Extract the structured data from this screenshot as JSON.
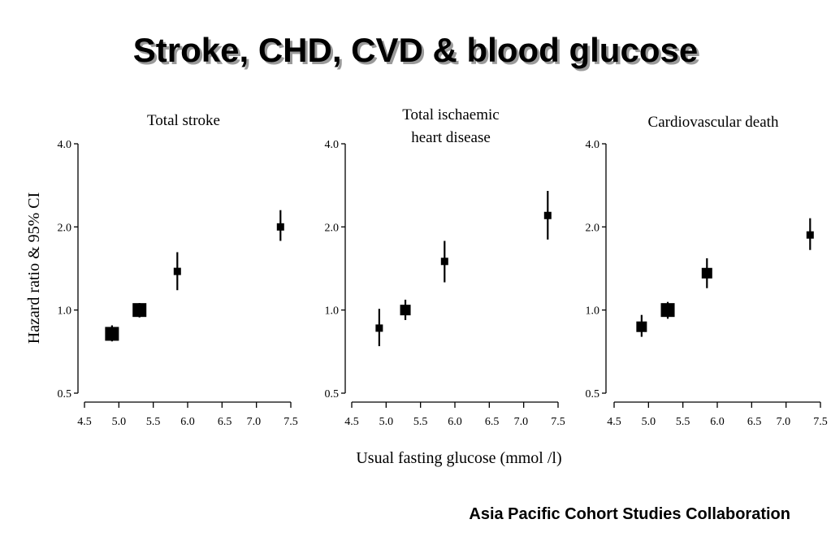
{
  "slide": {
    "title": "Stroke, CHD, CVD & blood glucose",
    "credit": "Asia Pacific Cohort Studies Collaboration"
  },
  "chart_data": {
    "shared_ylabel": "Hazard ratio & 95% CI",
    "shared_xlabel": "Usual fasting glucose (mmol /l)",
    "panels": [
      {
        "type": "scatter",
        "title_lines": [
          "Total stroke"
        ],
        "y_scale": "log",
        "ylim": [
          0.5,
          4.0
        ],
        "y_ticks": [
          0.5,
          1.0,
          2.0,
          4.0
        ],
        "y_tick_labels": [
          "0.5",
          "1.0",
          "2.0",
          "4.0"
        ],
        "xlim": [
          4.5,
          7.5
        ],
        "x_ticks": [
          4.5,
          5.0,
          5.5,
          6.0,
          6.5,
          7.0,
          7.5
        ],
        "x_tick_labels": [
          "4.5",
          "5.0",
          "5.5",
          "6.0",
          "6.5",
          "7.0",
          "7.5"
        ],
        "points": [
          {
            "x": 4.9,
            "y": 0.82,
            "lo": 0.77,
            "hi": 0.88,
            "weight": 3
          },
          {
            "x": 5.3,
            "y": 1.0,
            "lo": 0.94,
            "hi": 1.06,
            "weight": 3
          },
          {
            "x": 5.85,
            "y": 1.38,
            "lo": 1.18,
            "hi": 1.62,
            "weight": 1
          },
          {
            "x": 7.35,
            "y": 2.0,
            "lo": 1.78,
            "hi": 2.3,
            "weight": 1
          }
        ]
      },
      {
        "type": "scatter",
        "title_lines": [
          "Total ischaemic",
          "heart disease"
        ],
        "y_scale": "log",
        "ylim": [
          0.5,
          4.0
        ],
        "y_ticks": [
          0.5,
          1.0,
          2.0,
          4.0
        ],
        "y_tick_labels": [
          "0.5",
          "1.0",
          "2.0",
          "4.0"
        ],
        "xlim": [
          4.5,
          7.5
        ],
        "x_ticks": [
          4.5,
          5.0,
          5.5,
          6.0,
          6.5,
          7.0,
          7.5
        ],
        "x_tick_labels": [
          "4.5",
          "5.0",
          "5.5",
          "6.0",
          "6.5",
          "7.0",
          "7.5"
        ],
        "points": [
          {
            "x": 4.9,
            "y": 0.86,
            "lo": 0.74,
            "hi": 1.01,
            "weight": 1
          },
          {
            "x": 5.28,
            "y": 1.0,
            "lo": 0.92,
            "hi": 1.09,
            "weight": 2
          },
          {
            "x": 5.85,
            "y": 1.5,
            "lo": 1.26,
            "hi": 1.78,
            "weight": 1
          },
          {
            "x": 7.35,
            "y": 2.2,
            "lo": 1.8,
            "hi": 2.7,
            "weight": 1
          }
        ]
      },
      {
        "type": "scatter",
        "title_lines": [
          "Cardiovascular death"
        ],
        "y_scale": "log",
        "ylim": [
          0.5,
          4.0
        ],
        "y_ticks": [
          0.5,
          1.0,
          2.0,
          4.0
        ],
        "y_tick_labels": [
          "0.5",
          "1.0",
          "2.0",
          "4.0"
        ],
        "xlim": [
          4.5,
          7.5
        ],
        "x_ticks": [
          4.5,
          5.0,
          5.5,
          6.0,
          6.5,
          7.0,
          7.5
        ],
        "x_tick_labels": [
          "4.5",
          "5.0",
          "5.5",
          "6.0",
          "6.5",
          "7.0",
          "7.5"
        ],
        "points": [
          {
            "x": 4.9,
            "y": 0.87,
            "lo": 0.8,
            "hi": 0.96,
            "weight": 2
          },
          {
            "x": 5.28,
            "y": 1.0,
            "lo": 0.93,
            "hi": 1.07,
            "weight": 3
          },
          {
            "x": 5.85,
            "y": 1.36,
            "lo": 1.2,
            "hi": 1.54,
            "weight": 2
          },
          {
            "x": 7.35,
            "y": 1.87,
            "lo": 1.65,
            "hi": 2.15,
            "weight": 1
          }
        ]
      }
    ]
  }
}
